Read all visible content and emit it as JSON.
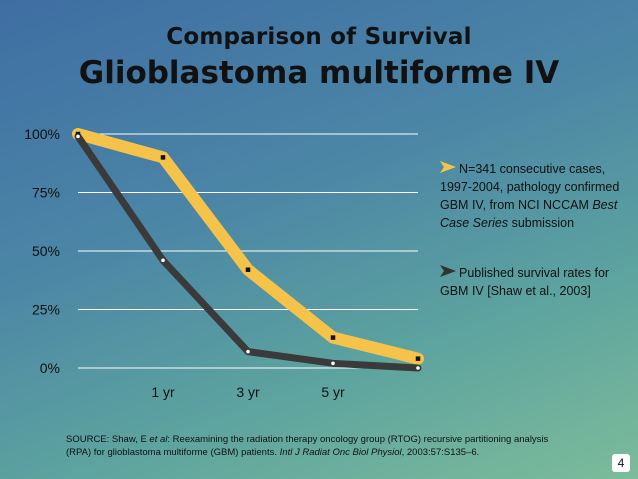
{
  "slide": {
    "title_line1": "Comparison of Survival",
    "title_line2": "Glioblastoma multiforme IV",
    "page_number": "4"
  },
  "legend": {
    "item1_pre": "N=341 consecutive cases, 1997-2004, pathology confirmed GBM IV, from NCI NCCAM ",
    "item1_italic": "Best Case Series",
    "item1_post": " submission",
    "item2": "Published survival rates for GBM IV [Shaw et al., 2003]"
  },
  "source": {
    "prefix": "SOURCE: Shaw, E ",
    "et_al": "et al",
    "middle": ": Reexamining the radiation therapy oncology group (RTOG) recursive partitioning analysis (RPA) for glioblastoma multiforme (GBM) patients. ",
    "journal": "Intl J Radiat Onc Biol Physiol",
    "suffix": ", 2003:57:S135–6."
  },
  "chart_data": {
    "type": "line",
    "title": "Glioblastoma multiforme IV",
    "x_ticks": [
      "1 yr",
      "3 yr",
      "5 yr"
    ],
    "y_ticks": [
      "0%",
      "25%",
      "50%",
      "75%",
      "100%"
    ],
    "ylim": [
      0,
      100
    ],
    "series": [
      {
        "name": "N=341 consecutive cases, 1997-2004, pathology confirmed GBM IV, from NCI NCCAM Best Case Series submission",
        "color": "#f5c34a",
        "x": [
          0,
          1,
          2,
          3,
          4
        ],
        "values": [
          100,
          90,
          42,
          13,
          4
        ]
      },
      {
        "name": "Published survival rates for GBM IV [Shaw et al., 2003]",
        "color": "#3a3a3a",
        "x": [
          0,
          1,
          2,
          3,
          4
        ],
        "values": [
          99,
          46,
          7,
          2,
          0
        ]
      }
    ],
    "tick_x_positions": [
      1,
      2,
      3
    ],
    "x_range": [
      0,
      4
    ]
  },
  "colors": {
    "grid": "#ffffff",
    "marker_yellow_series": "#111111",
    "marker_dark_series": "#ffffff",
    "legend_arrow_1": "#f5c34a",
    "legend_arrow_2": "#333333"
  }
}
